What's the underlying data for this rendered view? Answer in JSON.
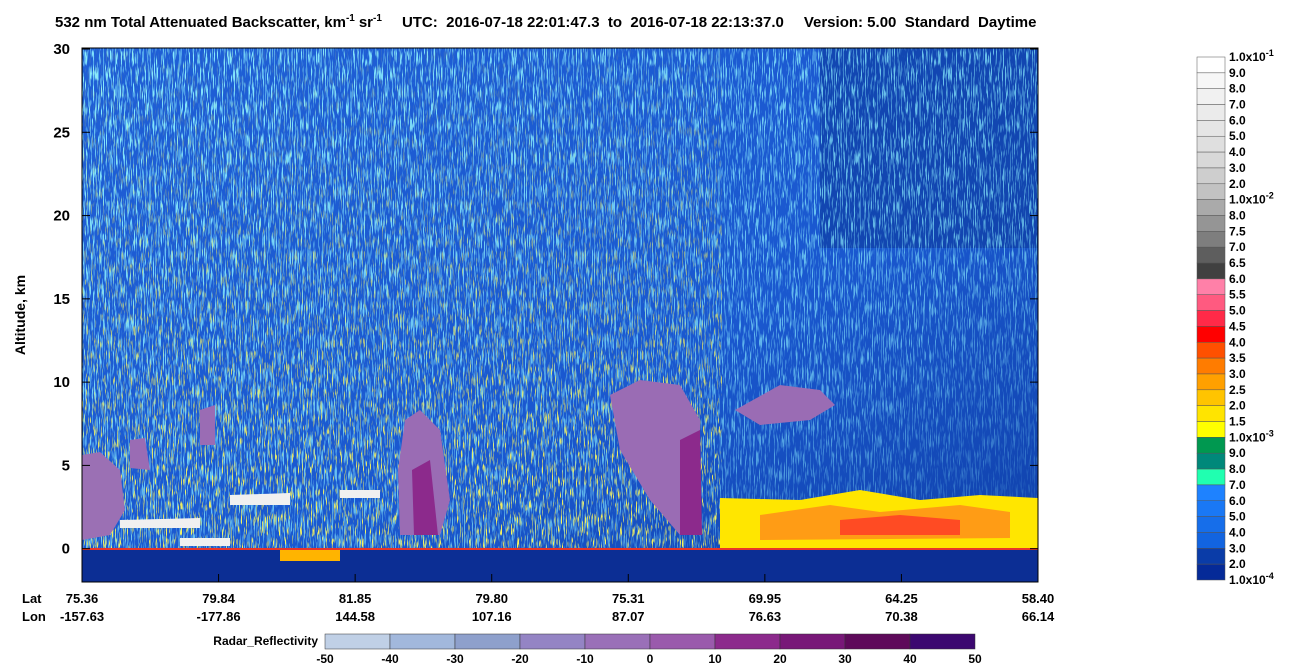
{
  "chart_data": {
    "type": "heatmap",
    "title_parts": [
      "532 nm Total Attenuated Backscatter, km",
      "-1",
      "sr",
      "-1",
      "UTC:  2016-07-18 22:01:47.3  to  2016-07-18 22:13:37.0",
      "Version: 5.00  Standard  Daytime"
    ],
    "y_label": "Altitude, km",
    "ylim": [
      -2,
      30
    ],
    "yticks": [
      0,
      5,
      10,
      15,
      20,
      25,
      30
    ],
    "x_rows": [
      {
        "name": "Lat",
        "labels": [
          "75.36",
          "79.84",
          "81.85",
          "79.80",
          "75.31",
          "69.95",
          "64.25",
          "58.40"
        ]
      },
      {
        "name": "Lon",
        "labels": [
          "-157.63",
          "-177.86",
          "144.58",
          "107.16",
          "87.07",
          "76.63",
          "70.38",
          "66.14"
        ]
      }
    ],
    "colorbar": {
      "labels": [
        {
          "label": "1.0x10",
          "exp": "-1"
        },
        "9.0",
        "8.0",
        "7.0",
        "6.0",
        "5.0",
        "4.0",
        "3.0",
        "2.0",
        {
          "label": "1.0x10",
          "exp": "-2"
        },
        "8.0",
        "7.5",
        "7.0",
        "6.5",
        "6.0",
        "5.5",
        "5.0",
        "4.5",
        "4.0",
        "3.5",
        "3.0",
        "2.5",
        "2.0",
        "1.5",
        {
          "label": "1.0x10",
          "exp": "-3"
        },
        "9.0",
        "8.0",
        "7.0",
        "6.0",
        "5.0",
        "4.0",
        "3.0",
        "2.0",
        {
          "label": "1.0x10",
          "exp": "-4"
        }
      ],
      "colors": [
        "#ffffff",
        "#f7f7f7",
        "#f1f1f1",
        "#ebebeb",
        "#e5e5e5",
        "#dfdfdf",
        "#d8d8d8",
        "#cecece",
        "#c2c2c2",
        "#aaaaaa",
        "#959595",
        "#7e7e7e",
        "#5e5e5e",
        "#404040",
        "#ff80a8",
        "#ff5a80",
        "#ff2a48",
        "#ff0000",
        "#ff5000",
        "#ff7c00",
        "#ffa000",
        "#ffc400",
        "#ffe400",
        "#ffff00",
        "#009850",
        "#00887a",
        "#20ffb0",
        "#1e82ff",
        "#1a78f5",
        "#166eea",
        "#1264e0",
        "#0a3ca8",
        "#052a98"
      ]
    },
    "radar_colorbar": {
      "title": "Radar_Reflectivity",
      "ticks": [
        -50,
        -40,
        -30,
        -20,
        -10,
        0,
        10,
        20,
        30,
        40,
        50
      ],
      "colors": [
        "#c0d0e6",
        "#a2b8dc",
        "#8ea0cc",
        "#9484c4",
        "#9a70b8",
        "#9a5aac",
        "#8c2a8c",
        "#781878",
        "#5e0a5a",
        "#3c0870"
      ]
    }
  }
}
